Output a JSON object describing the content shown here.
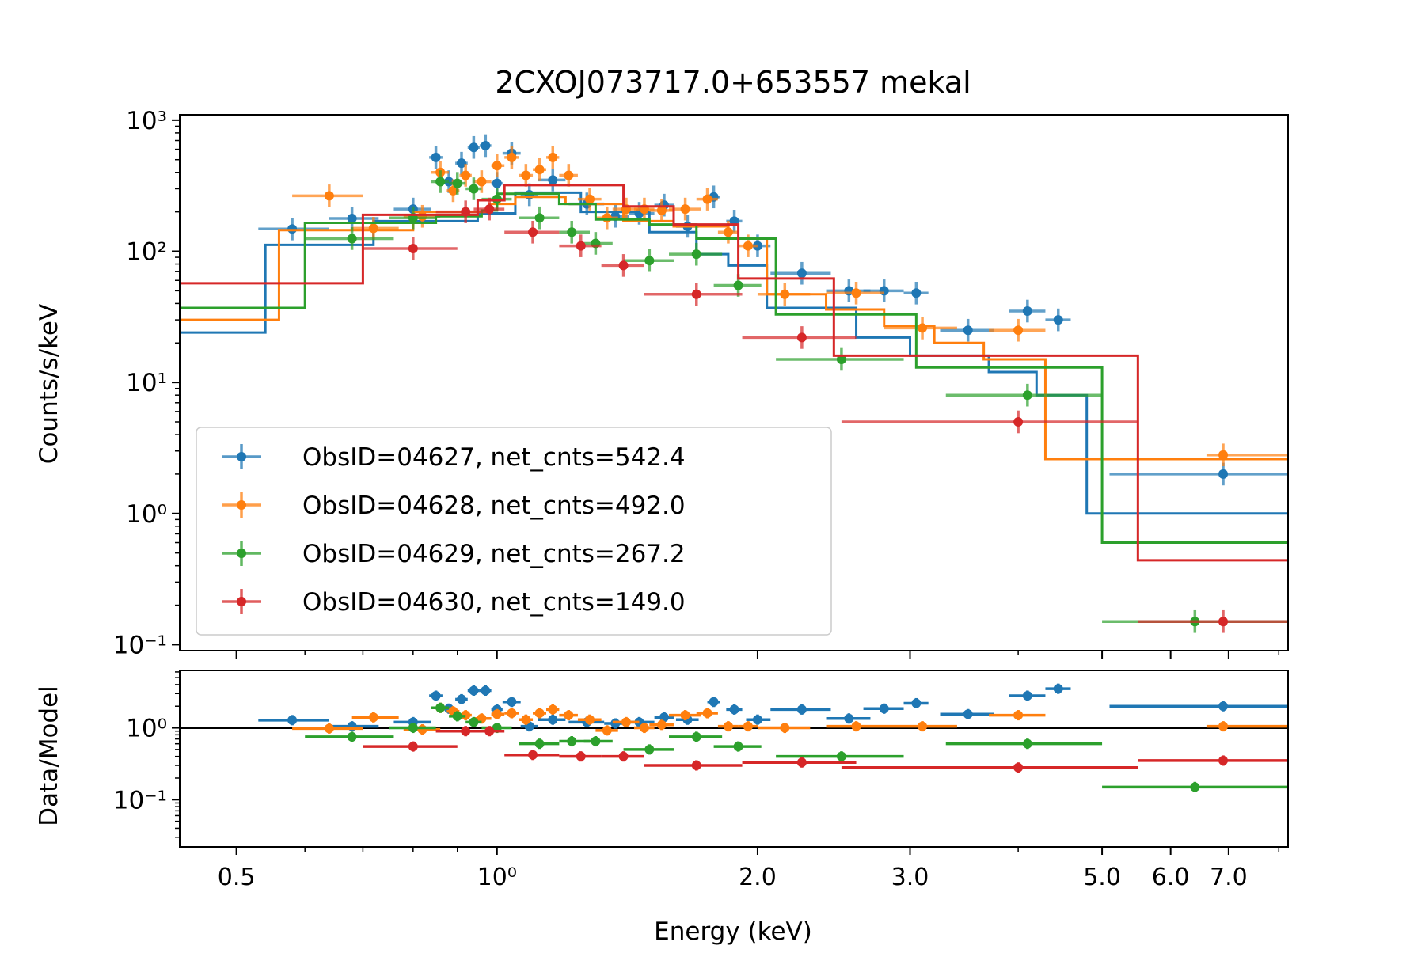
{
  "chart_data": {
    "type": "scatter",
    "title": "2CXOJ073717.0+653557 mekal",
    "xlabel": "Energy (keV)",
    "ylabel_top": "Counts/s/keV",
    "ylabel_bottom": "Data/Model",
    "xscale": "log",
    "yscale": "log",
    "xlim": [
      0.43,
      8.2
    ],
    "ylim_top": [
      0.09,
      1100
    ],
    "ylim_bottom": [
      0.022,
      6.3
    ],
    "x_ticks": [
      {
        "value": 0.5,
        "label": "0.5"
      },
      {
        "value": 1.0,
        "label": "10⁰"
      },
      {
        "value": 2.0,
        "label": "2.0"
      },
      {
        "value": 3.0,
        "label": "3.0"
      },
      {
        "value": 5.0,
        "label": "5.0"
      },
      {
        "value": 6.0,
        "label": "6.0"
      },
      {
        "value": 7.0,
        "label": "7.0"
      }
    ],
    "y_ticks_top": [
      {
        "value": 0.1,
        "label": "10⁻¹"
      },
      {
        "value": 1,
        "label": "10⁰"
      },
      {
        "value": 10,
        "label": "10¹"
      },
      {
        "value": 100,
        "label": "10²"
      },
      {
        "value": 1000,
        "label": "10³"
      }
    ],
    "y_ticks_bottom": [
      {
        "value": 0.1,
        "label": "10⁻¹"
      },
      {
        "value": 1,
        "label": "10⁰"
      }
    ],
    "legend_position": "lower-left",
    "series": [
      {
        "name": "ObsID=04627, net_cnts=542.4",
        "color": "#1f77b4",
        "model": [
          [
            0.43,
            24
          ],
          [
            0.54,
            112
          ],
          [
            0.72,
            170
          ],
          [
            0.95,
            195
          ],
          [
            1.05,
            280
          ],
          [
            1.25,
            200
          ],
          [
            1.5,
            140
          ],
          [
            1.7,
            95
          ],
          [
            1.85,
            78
          ],
          [
            2.05,
            37
          ],
          [
            2.6,
            22
          ],
          [
            3.0,
            16
          ],
          [
            3.7,
            12
          ],
          [
            4.2,
            8
          ],
          [
            4.8,
            1.0
          ],
          [
            8.2,
            1.0
          ]
        ],
        "data": [
          [
            0.58,
            0.53,
            0.64,
            148,
            1.28
          ],
          [
            0.68,
            0.64,
            0.73,
            178,
            1.05
          ],
          [
            0.8,
            0.76,
            0.84,
            210,
            1.2
          ],
          [
            0.85,
            0.835,
            0.865,
            520,
            2.8
          ],
          [
            0.88,
            0.865,
            0.895,
            340,
            1.85
          ],
          [
            0.91,
            0.895,
            0.925,
            470,
            2.5
          ],
          [
            0.94,
            0.925,
            0.955,
            620,
            3.3
          ],
          [
            0.97,
            0.955,
            0.985,
            640,
            3.3
          ],
          [
            1.0,
            0.985,
            1.015,
            330,
            1.8
          ],
          [
            1.04,
            1.015,
            1.065,
            560,
            2.3
          ],
          [
            1.09,
            1.065,
            1.115,
            270,
            1.05
          ],
          [
            1.16,
            1.115,
            1.2,
            350,
            1.3
          ],
          [
            1.27,
            1.21,
            1.33,
            230,
            1.2
          ],
          [
            1.37,
            1.33,
            1.42,
            185,
            1.15
          ],
          [
            1.46,
            1.42,
            1.52,
            195,
            1.2
          ],
          [
            1.56,
            1.52,
            1.6,
            225,
            1.4
          ],
          [
            1.66,
            1.61,
            1.71,
            155,
            1.3
          ],
          [
            1.78,
            1.75,
            1.81,
            260,
            2.3
          ],
          [
            1.88,
            1.84,
            1.92,
            170,
            1.8
          ],
          [
            2.0,
            1.94,
            2.07,
            110,
            1.3
          ],
          [
            2.25,
            2.07,
            2.43,
            68,
            1.8
          ],
          [
            2.55,
            2.4,
            2.7,
            50,
            1.35
          ],
          [
            2.8,
            2.65,
            2.95,
            50,
            1.85
          ],
          [
            3.05,
            2.95,
            3.15,
            48,
            2.2
          ],
          [
            3.5,
            3.25,
            3.75,
            25,
            1.55
          ],
          [
            4.1,
            3.9,
            4.3,
            35,
            2.8
          ],
          [
            4.45,
            4.3,
            4.6,
            30,
            3.5
          ],
          [
            6.9,
            5.1,
            8.2,
            2.0,
            2.0
          ]
        ]
      },
      {
        "name": "ObsID=04628, net_cnts=492.0",
        "color": "#ff7f0e",
        "model": [
          [
            0.43,
            30
          ],
          [
            0.56,
            145
          ],
          [
            0.8,
            200
          ],
          [
            0.98,
            230
          ],
          [
            1.05,
            260
          ],
          [
            1.2,
            230
          ],
          [
            1.4,
            170
          ],
          [
            1.6,
            155
          ],
          [
            1.85,
            125
          ],
          [
            2.05,
            47
          ],
          [
            2.4,
            36
          ],
          [
            2.8,
            27
          ],
          [
            3.2,
            20
          ],
          [
            3.65,
            15
          ],
          [
            4.3,
            2.6
          ],
          [
            8.2,
            2.6
          ]
        ],
        "data": [
          [
            0.64,
            0.58,
            0.7,
            265,
            0.98
          ],
          [
            0.72,
            0.68,
            0.77,
            150,
            1.4
          ],
          [
            0.82,
            0.78,
            0.86,
            185,
            0.95
          ],
          [
            0.86,
            0.84,
            0.88,
            400,
            1.9
          ],
          [
            0.89,
            0.875,
            0.905,
            290,
            1.7
          ],
          [
            0.92,
            0.905,
            0.935,
            380,
            1.5
          ],
          [
            0.96,
            0.94,
            0.985,
            340,
            1.35
          ],
          [
            1.0,
            0.985,
            1.02,
            450,
            1.55
          ],
          [
            1.04,
            1.02,
            1.06,
            520,
            1.6
          ],
          [
            1.08,
            1.06,
            1.1,
            380,
            1.3
          ],
          [
            1.12,
            1.1,
            1.14,
            420,
            1.6
          ],
          [
            1.16,
            1.14,
            1.18,
            520,
            1.8
          ],
          [
            1.21,
            1.18,
            1.24,
            380,
            1.5
          ],
          [
            1.28,
            1.24,
            1.32,
            250,
            1.3
          ],
          [
            1.34,
            1.3,
            1.38,
            180,
            0.92
          ],
          [
            1.41,
            1.36,
            1.46,
            210,
            1.2
          ],
          [
            1.48,
            1.44,
            1.52,
            210,
            1.0
          ],
          [
            1.55,
            1.5,
            1.6,
            205,
            1.1
          ],
          [
            1.65,
            1.58,
            1.72,
            210,
            1.5
          ],
          [
            1.75,
            1.7,
            1.8,
            250,
            1.6
          ],
          [
            1.85,
            1.8,
            1.9,
            140,
            1.05
          ],
          [
            1.95,
            1.9,
            2.0,
            110,
            1.05
          ],
          [
            2.15,
            2.0,
            2.3,
            47,
            1.0
          ],
          [
            2.6,
            2.4,
            2.8,
            48,
            1.05
          ],
          [
            3.1,
            2.8,
            3.4,
            26,
            1.05
          ],
          [
            4.0,
            3.7,
            4.3,
            25,
            1.5
          ],
          [
            6.9,
            6.6,
            8.2,
            2.8,
            1.05
          ]
        ]
      },
      {
        "name": "ObsID=04629, net_cnts=267.2",
        "color": "#2ca02c",
        "model": [
          [
            0.43,
            37
          ],
          [
            0.6,
            165
          ],
          [
            0.85,
            185
          ],
          [
            0.96,
            205
          ],
          [
            1.0,
            275
          ],
          [
            1.18,
            230
          ],
          [
            1.3,
            175
          ],
          [
            1.5,
            160
          ],
          [
            1.7,
            125
          ],
          [
            2.1,
            33
          ],
          [
            3.05,
            13
          ],
          [
            5.0,
            0.6
          ],
          [
            8.2,
            0.6
          ]
        ],
        "data": [
          [
            0.68,
            0.6,
            0.76,
            125,
            0.75
          ],
          [
            0.8,
            0.75,
            0.85,
            180,
            1.0
          ],
          [
            0.86,
            0.84,
            0.88,
            340,
            1.9
          ],
          [
            0.9,
            0.88,
            0.92,
            330,
            1.45
          ],
          [
            0.94,
            0.92,
            0.96,
            300,
            1.2
          ],
          [
            1.0,
            0.96,
            1.04,
            250,
            1.0
          ],
          [
            1.12,
            1.06,
            1.18,
            180,
            0.6
          ],
          [
            1.22,
            1.18,
            1.28,
            140,
            0.65
          ],
          [
            1.3,
            1.26,
            1.36,
            115,
            0.65
          ],
          [
            1.5,
            1.4,
            1.6,
            85,
            0.5
          ],
          [
            1.7,
            1.58,
            1.82,
            95,
            0.75
          ],
          [
            1.9,
            1.78,
            2.02,
            55,
            0.55
          ],
          [
            2.5,
            2.1,
            2.95,
            15,
            0.4
          ],
          [
            4.1,
            3.3,
            5.0,
            8,
            0.6
          ],
          [
            6.4,
            5.0,
            8.2,
            0.15,
            0.15
          ]
        ]
      },
      {
        "name": "ObsID=04630, net_cnts=149.0",
        "color": "#d62728",
        "model": [
          [
            0.43,
            57
          ],
          [
            0.7,
            190
          ],
          [
            0.95,
            245
          ],
          [
            1.02,
            320
          ],
          [
            1.4,
            220
          ],
          [
            1.6,
            160
          ],
          [
            1.9,
            62
          ],
          [
            2.45,
            16
          ],
          [
            5.5,
            0.44
          ],
          [
            8.2,
            0.44
          ]
        ],
        "data": [
          [
            0.8,
            0.7,
            0.9,
            105,
            0.55
          ],
          [
            0.92,
            0.85,
            0.99,
            200,
            0.9
          ],
          [
            0.98,
            0.94,
            1.02,
            210,
            0.9
          ],
          [
            1.1,
            1.02,
            1.18,
            140,
            0.42
          ],
          [
            1.25,
            1.18,
            1.32,
            110,
            0.4
          ],
          [
            1.4,
            1.32,
            1.48,
            78,
            0.4
          ],
          [
            1.7,
            1.48,
            1.92,
            47,
            0.3
          ],
          [
            2.25,
            1.92,
            2.6,
            22,
            0.33
          ],
          [
            4.0,
            2.5,
            5.5,
            5,
            0.28
          ],
          [
            6.9,
            5.5,
            8.2,
            0.15,
            0.35
          ]
        ]
      }
    ]
  }
}
